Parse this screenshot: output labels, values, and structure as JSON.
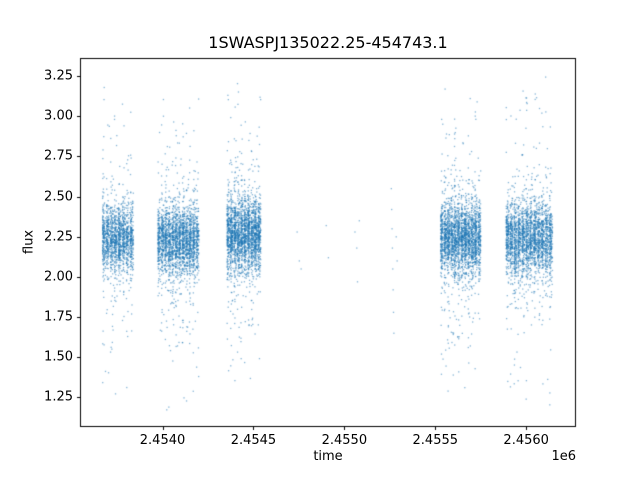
{
  "chart_data": {
    "type": "scatter",
    "title": "1SWASPJ135022.25-454743.1",
    "xlabel": "time",
    "ylabel": "flux",
    "x_offset_label": "1e6",
    "xlim": [
      2453546,
      2456274
    ],
    "ylim": [
      1.065,
      3.365
    ],
    "x_ticks": [
      2454000,
      2454500,
      2455000,
      2455500,
      2456000
    ],
    "x_tick_labels": [
      "2.4540",
      "2.4545",
      "2.4550",
      "2.4555",
      "2.4560"
    ],
    "y_ticks": [
      1.25,
      1.5,
      1.75,
      2.0,
      2.25,
      2.5,
      2.75,
      3.0,
      3.25
    ],
    "y_tick_labels": [
      "1.25",
      "1.50",
      "1.75",
      "2.00",
      "2.25",
      "2.50",
      "2.75",
      "3.00",
      "3.25"
    ],
    "marker_color": "#1f77b4",
    "marker_alpha": 0.55,
    "spine_color": "#000000",
    "seed": 42,
    "clusters": [
      {
        "x_start": 2453670,
        "x_end": 2453845,
        "n": 1600,
        "stripes": 8,
        "flux_mean": 2.24,
        "flux_core_std": 0.1,
        "flux_min": 1.25,
        "flux_max": 3.22
      },
      {
        "x_start": 2453975,
        "x_end": 2454205,
        "n": 2400,
        "stripes": 12,
        "flux_mean": 2.23,
        "flux_core_std": 0.1,
        "flux_min": 1.17,
        "flux_max": 3.12
      },
      {
        "x_start": 2454355,
        "x_end": 2454545,
        "n": 2400,
        "stripes": 10,
        "flux_mean": 2.26,
        "flux_core_std": 0.11,
        "flux_min": 1.3,
        "flux_max": 3.26
      },
      {
        "x_start": 2455530,
        "x_end": 2455755,
        "n": 2600,
        "stripes": 12,
        "flux_mean": 2.24,
        "flux_core_std": 0.11,
        "flux_min": 1.24,
        "flux_max": 3.22
      },
      {
        "x_start": 2455890,
        "x_end": 2456150,
        "n": 2600,
        "stripes": 12,
        "flux_mean": 2.24,
        "flux_core_std": 0.11,
        "flux_min": 1.16,
        "flux_max": 3.26
      }
    ],
    "sparse_points": [
      {
        "x": 2454740,
        "flux": 2.28
      },
      {
        "x": 2454752,
        "flux": 2.1
      },
      {
        "x": 2454762,
        "flux": 2.05
      },
      {
        "x": 2454900,
        "flux": 2.32
      },
      {
        "x": 2454912,
        "flux": 2.12
      },
      {
        "x": 2455058,
        "flux": 2.28
      },
      {
        "x": 2455068,
        "flux": 2.18
      },
      {
        "x": 2455072,
        "flux": 1.97
      },
      {
        "x": 2455082,
        "flux": 2.35
      },
      {
        "x": 2455258,
        "flux": 2.55
      },
      {
        "x": 2455260,
        "flux": 2.42
      },
      {
        "x": 2455262,
        "flux": 2.3
      },
      {
        "x": 2455264,
        "flux": 2.18
      },
      {
        "x": 2455266,
        "flux": 2.05
      },
      {
        "x": 2455268,
        "flux": 1.92
      },
      {
        "x": 2455270,
        "flux": 1.78
      },
      {
        "x": 2455272,
        "flux": 1.65
      },
      {
        "x": 2455285,
        "flux": 2.25
      },
      {
        "x": 2455290,
        "flux": 2.1
      }
    ]
  }
}
